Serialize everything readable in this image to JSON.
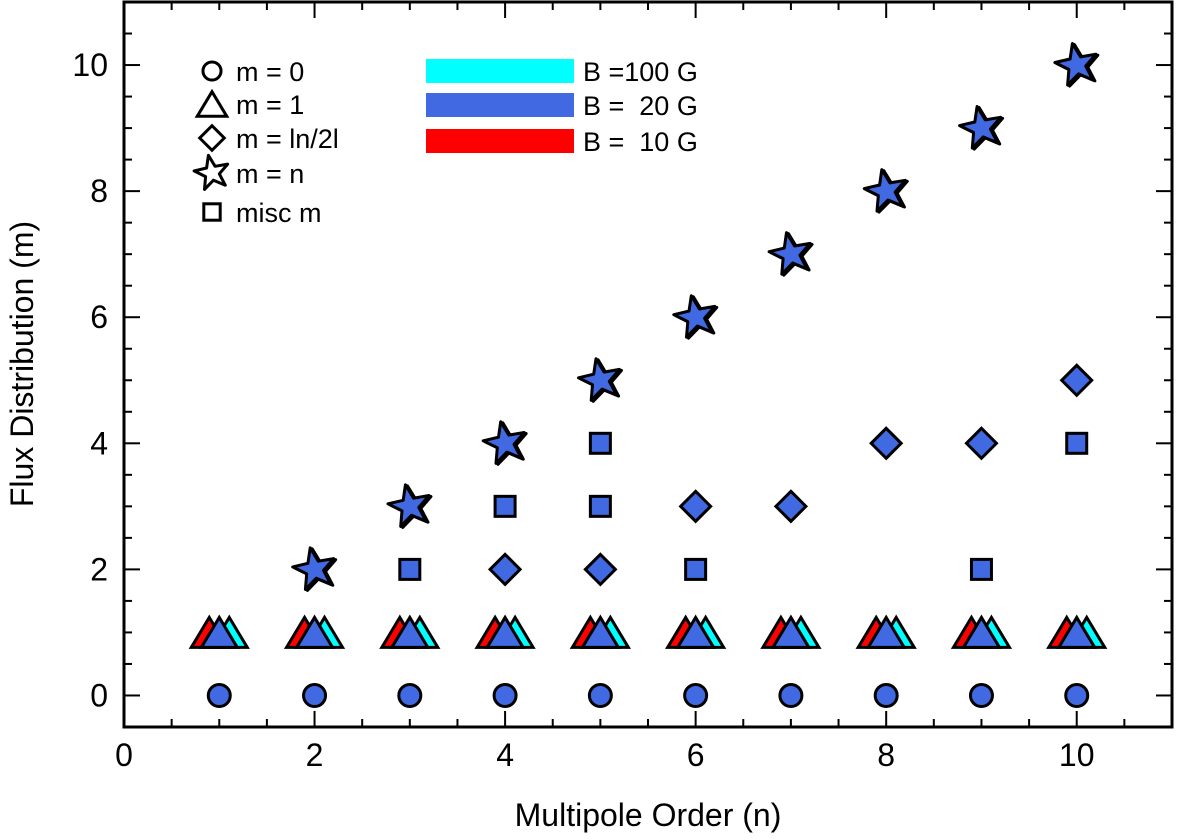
{
  "chart_data": {
    "type": "scatter",
    "title": "",
    "xlabel": "Multipole Order (n)",
    "ylabel": "Flux Distribution (m)",
    "xlim": [
      0,
      11
    ],
    "ylim": [
      -0.5,
      11
    ],
    "x_ticks": [
      0,
      2,
      4,
      6,
      8,
      10
    ],
    "y_ticks": [
      0,
      2,
      4,
      6,
      8,
      10
    ],
    "grid": false,
    "legend_position": "top-left",
    "marker_legend": [
      {
        "marker": "circle",
        "label": "m = 0"
      },
      {
        "marker": "triangle",
        "label": "m = 1"
      },
      {
        "marker": "diamond",
        "label": "m = ln/2l"
      },
      {
        "marker": "star",
        "label": "m = n"
      },
      {
        "marker": "square",
        "label": "misc m"
      }
    ],
    "color_legend": [
      {
        "label": "B =100 G",
        "color": "#00ffff"
      },
      {
        "label": "B =  20 G",
        "color": "#4169e1"
      },
      {
        "label": "B =  10 G",
        "color": "#ff0000"
      }
    ],
    "series": [
      {
        "name": "m = 0",
        "marker": "circle",
        "x": [
          1,
          2,
          3,
          4,
          5,
          6,
          7,
          8,
          9,
          10
        ],
        "y": [
          0,
          0,
          0,
          0,
          0,
          0,
          0,
          0,
          0,
          0
        ]
      },
      {
        "name": "m = 1",
        "marker": "triangle",
        "x": [
          1,
          2,
          3,
          4,
          5,
          6,
          7,
          8,
          9,
          10
        ],
        "y": [
          1,
          1,
          1,
          1,
          1,
          1,
          1,
          1,
          1,
          1
        ]
      },
      {
        "name": "m = ln/2l",
        "marker": "diamond",
        "x": [
          4,
          5,
          6,
          7,
          8,
          9,
          10
        ],
        "y": [
          2,
          2,
          3,
          3,
          4,
          4,
          5
        ]
      },
      {
        "name": "m = n",
        "marker": "star",
        "x": [
          2,
          3,
          4,
          5,
          6,
          7,
          8,
          9,
          10
        ],
        "y": [
          2,
          3,
          4,
          5,
          6,
          7,
          8,
          9,
          10
        ]
      },
      {
        "name": "misc m",
        "marker": "square",
        "x": [
          3,
          4,
          5,
          5,
          6,
          9,
          10
        ],
        "y": [
          2,
          3,
          3,
          4,
          2,
          2,
          4
        ]
      }
    ]
  }
}
